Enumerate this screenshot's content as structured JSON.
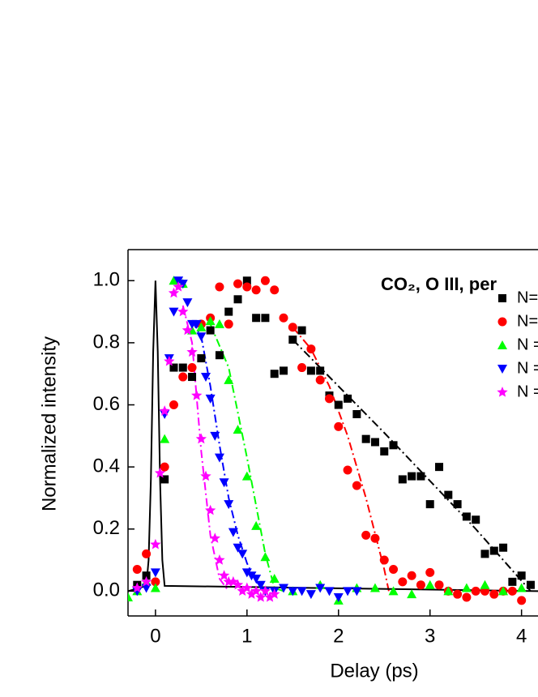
{
  "chart_data": {
    "type": "scatter",
    "title": "CO₂, O III, per",
    "x_label": "Delay (ps)",
    "y_label": "Normalized intensity",
    "xlim": [
      -0.3,
      4.18
    ],
    "ylim": [
      -0.08,
      1.1
    ],
    "xticks": [
      0,
      1,
      2,
      3,
      4
    ],
    "yticks": [
      {
        "value": 0,
        "label": "0.0"
      },
      0.2,
      0.4,
      0.6,
      0.8,
      {
        "value": 1,
        "label": "1.0"
      }
    ],
    "series": [
      {
        "name": "N=",
        "color": "#000000",
        "marker": "square",
        "x": [
          -0.2,
          -0.1,
          0.1,
          0.2,
          0.3,
          0.4,
          0.5,
          0.6,
          0.7,
          0.8,
          0.9,
          1.0,
          1.1,
          1.2,
          1.3,
          1.4,
          1.5,
          1.6,
          1.7,
          1.8,
          1.9,
          2.0,
          2.1,
          2.2,
          2.3,
          2.4,
          2.5,
          2.6,
          2.7,
          2.8,
          2.9,
          3.0,
          3.1,
          3.2,
          3.3,
          3.4,
          3.5,
          3.6,
          3.7,
          3.8,
          3.9,
          4.0,
          4.1
        ],
        "values": [
          0.02,
          0.05,
          0.36,
          0.72,
          0.72,
          0.69,
          0.75,
          0.84,
          0.76,
          0.9,
          0.94,
          1.0,
          0.88,
          0.88,
          0.7,
          0.71,
          0.81,
          0.84,
          0.71,
          0.71,
          0.63,
          0.6,
          0.62,
          0.57,
          0.49,
          0.48,
          0.45,
          0.47,
          0.36,
          0.37,
          0.37,
          0.28,
          0.4,
          0.31,
          0.28,
          0.24,
          0.23,
          0.12,
          0.13,
          0.14,
          0.03,
          0.05,
          0.02
        ]
      },
      {
        "name": "N=",
        "color": "#ff0000",
        "marker": "circle",
        "x": [
          -0.2,
          -0.1,
          0.0,
          0.1,
          0.2,
          0.3,
          0.4,
          0.5,
          0.6,
          0.7,
          0.8,
          0.9,
          1.0,
          1.1,
          1.2,
          1.3,
          1.4,
          1.5,
          1.6,
          1.7,
          1.8,
          1.9,
          2.0,
          2.1,
          2.2,
          2.3,
          2.4,
          2.5,
          2.6,
          2.7,
          2.8,
          2.9,
          3.0,
          3.1,
          3.2,
          3.3,
          3.4,
          3.5,
          3.6,
          3.7,
          3.8,
          3.9,
          4.0
        ],
        "values": [
          0.07,
          0.12,
          0.03,
          0.4,
          0.6,
          0.69,
          0.72,
          0.86,
          0.88,
          0.98,
          0.86,
          0.99,
          0.98,
          0.97,
          1.0,
          0.97,
          0.88,
          0.85,
          0.72,
          0.78,
          0.68,
          0.62,
          0.53,
          0.39,
          0.34,
          0.18,
          0.17,
          0.1,
          0.07,
          0.03,
          0.05,
          0.02,
          0.06,
          0.02,
          0.0,
          -0.01,
          -0.02,
          0.0,
          0.0,
          -0.01,
          0.0,
          0.0,
          -0.03
        ]
      },
      {
        "name": "N =",
        "color": "#00ff00",
        "marker": "triangle-up",
        "x": [
          -0.3,
          -0.2,
          -0.1,
          0.0,
          0.1,
          0.2,
          0.3,
          0.4,
          0.5,
          0.6,
          0.7,
          0.8,
          0.9,
          1.0,
          1.1,
          1.2,
          1.3,
          1.5,
          1.8,
          2.0,
          2.2,
          2.4,
          2.6,
          2.8,
          3.0,
          3.2,
          3.4,
          3.6,
          3.8,
          4.0
        ],
        "values": [
          -0.02,
          0.0,
          0.03,
          0.01,
          0.49,
          1.0,
          0.99,
          0.84,
          0.85,
          0.87,
          0.86,
          0.68,
          0.52,
          0.37,
          0.21,
          0.11,
          0.04,
          0.0,
          0.02,
          -0.03,
          0.01,
          0.01,
          0.0,
          -0.01,
          0.02,
          0.0,
          0.01,
          0.02,
          0.0,
          0.01
        ]
      },
      {
        "name": "N =",
        "color": "#0000ff",
        "marker": "triangle-down",
        "x": [
          -0.2,
          -0.1,
          0.0,
          0.1,
          0.15,
          0.2,
          0.25,
          0.3,
          0.35,
          0.4,
          0.45,
          0.5,
          0.55,
          0.6,
          0.65,
          0.7,
          0.75,
          0.8,
          0.85,
          0.9,
          0.95,
          1.0,
          1.05,
          1.1,
          1.15,
          1.2,
          1.3,
          1.4,
          1.5,
          1.6,
          1.7,
          1.8,
          1.9,
          2.0,
          2.1,
          2.2
        ],
        "values": [
          0.0,
          0.01,
          0.06,
          0.57,
          0.75,
          0.9,
          1.0,
          0.99,
          0.93,
          0.86,
          0.86,
          0.82,
          0.69,
          0.62,
          0.5,
          0.43,
          0.35,
          0.28,
          0.19,
          0.14,
          0.12,
          0.06,
          0.05,
          0.04,
          0.02,
          0.0,
          0.0,
          0.01,
          0.0,
          0.0,
          -0.01,
          0.01,
          0.0,
          -0.02,
          0.0,
          0.0
        ]
      },
      {
        "name": "N =",
        "color": "#ff00ff",
        "marker": "star",
        "x": [
          -0.2,
          -0.1,
          0.0,
          0.05,
          0.1,
          0.15,
          0.2,
          0.25,
          0.3,
          0.35,
          0.4,
          0.45,
          0.5,
          0.55,
          0.6,
          0.65,
          0.7,
          0.75,
          0.8,
          0.85,
          0.9,
          0.95,
          1.0,
          1.05,
          1.1,
          1.15,
          1.2,
          1.25,
          1.3
        ],
        "values": [
          0.01,
          0.03,
          0.15,
          0.38,
          0.58,
          0.74,
          0.96,
          0.98,
          0.9,
          0.84,
          0.77,
          0.63,
          0.49,
          0.37,
          0.26,
          0.17,
          0.1,
          0.05,
          0.03,
          0.03,
          0.02,
          0.0,
          0.01,
          -0.01,
          0.0,
          -0.02,
          0.0,
          -0.02,
          -0.01
        ]
      }
    ],
    "fits": [
      {
        "color": "#000000",
        "style": "dashdot",
        "x": [
          1.5,
          2.5,
          3.5,
          4.1
        ],
        "values": [
          0.81,
          0.51,
          0.2,
          0.0
        ]
      },
      {
        "color": "#ff0000",
        "style": "dashdot",
        "x": [
          1.5,
          1.7,
          1.9,
          2.1,
          2.3,
          2.5,
          2.55
        ],
        "values": [
          0.85,
          0.78,
          0.66,
          0.5,
          0.3,
          0.07,
          0.0
        ]
      },
      {
        "color": "#00ff00",
        "style": "dashdot",
        "x": [
          0.6,
          0.8,
          1.0,
          1.2,
          1.3,
          1.4
        ],
        "values": [
          0.86,
          0.72,
          0.43,
          0.12,
          0.01,
          0.0
        ]
      },
      {
        "color": "#0000ff",
        "style": "dashdot",
        "x": [
          0.4,
          0.5,
          0.6,
          0.7,
          0.8,
          0.9,
          1.0,
          1.1,
          1.2
        ],
        "values": [
          0.87,
          0.82,
          0.66,
          0.47,
          0.3,
          0.18,
          0.09,
          0.03,
          0.0
        ]
      },
      {
        "color": "#ff00ff",
        "style": "dashdot",
        "x": [
          0.3,
          0.4,
          0.5,
          0.6,
          0.7,
          0.8
        ],
        "values": [
          0.92,
          0.8,
          0.45,
          0.18,
          0.04,
          0.0
        ]
      },
      {
        "color": "#000000",
        "style": "solid",
        "x": [
          -0.3,
          -0.1,
          -0.075,
          -0.05,
          -0.025,
          0,
          0.025,
          0.05,
          0.075,
          0.1,
          4.18
        ],
        "values": [
          0,
          0.017,
          0.1,
          0.36,
          0.77,
          1,
          0.77,
          0.36,
          0.1,
          0.017,
          0
        ]
      }
    ]
  }
}
